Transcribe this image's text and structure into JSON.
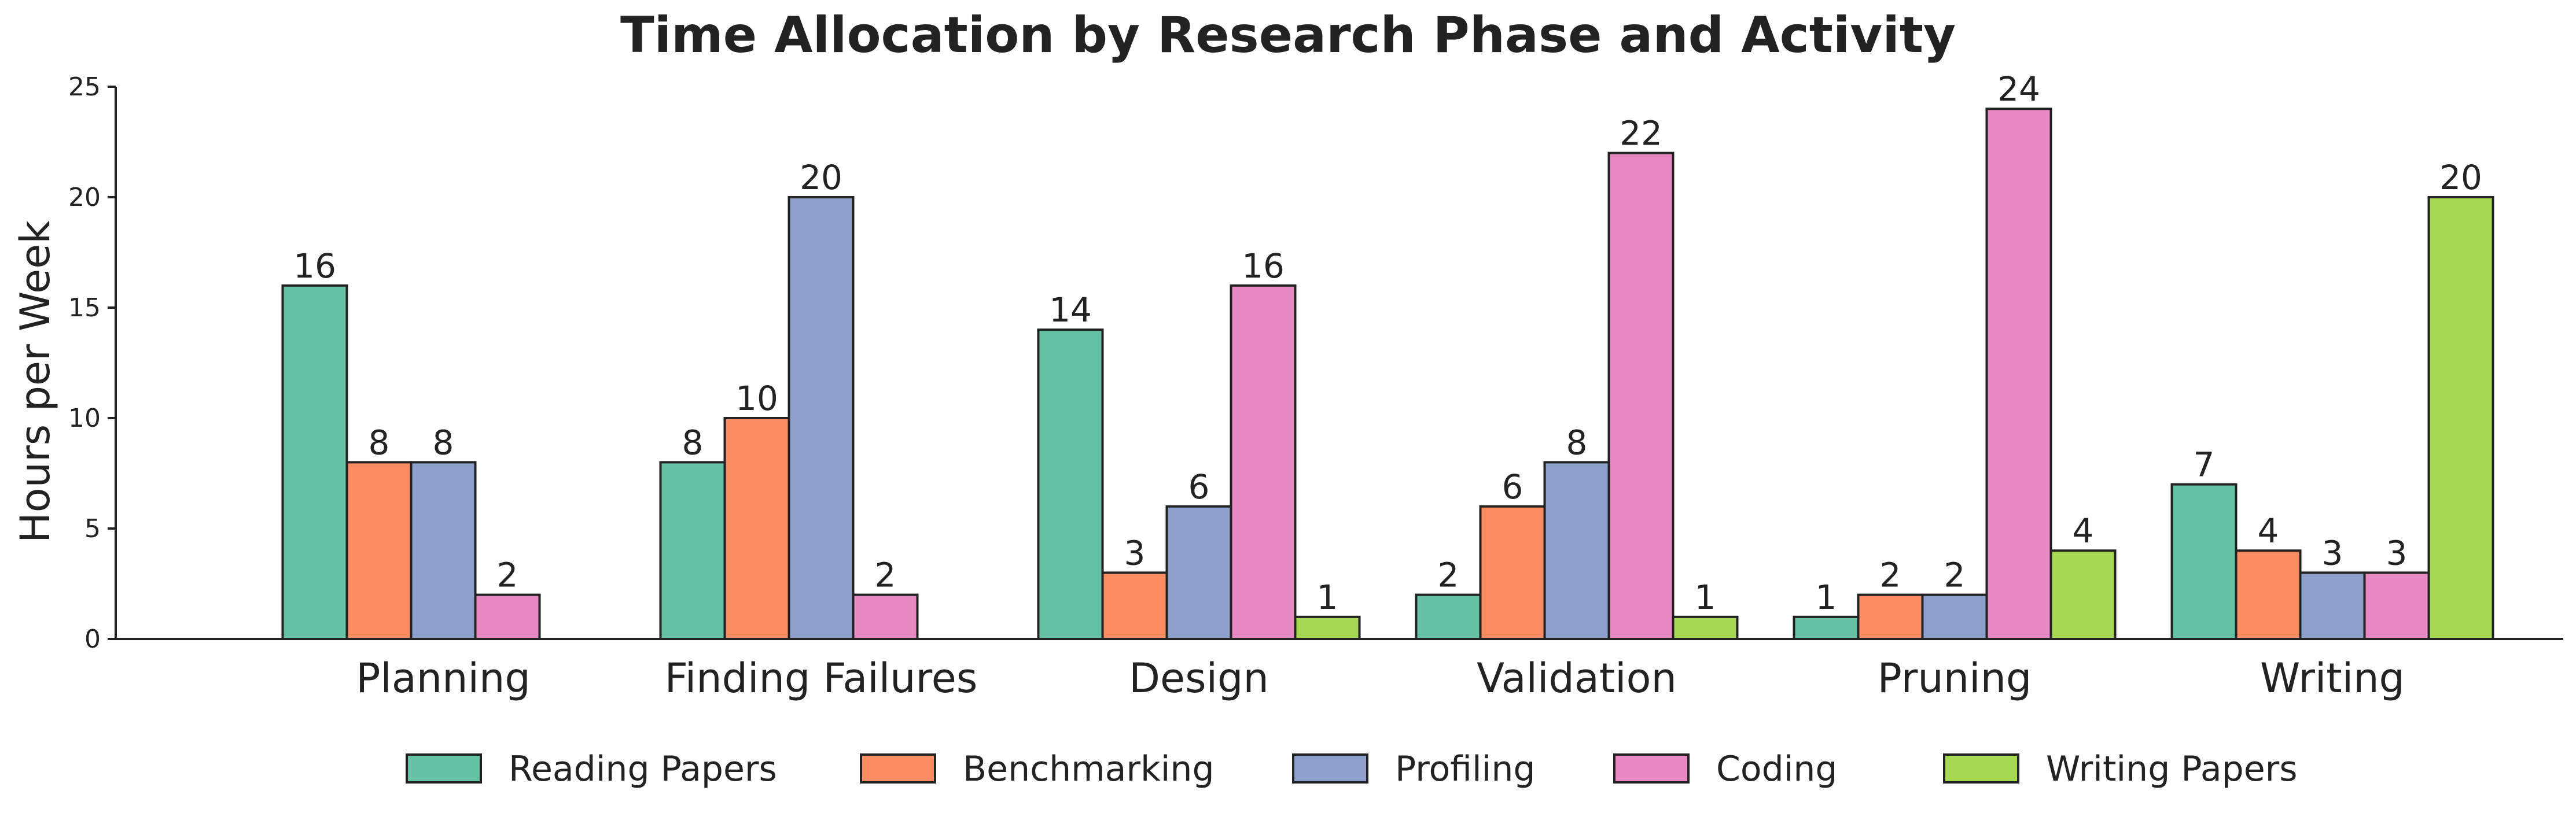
{
  "chart_data": {
    "type": "bar",
    "title": "Time Allocation by Research Phase and Activity",
    "xlabel": "",
    "ylabel": "Hours per Week",
    "ylim": [
      0,
      25
    ],
    "yticks": [
      0,
      5,
      10,
      15,
      20,
      25
    ],
    "categories": [
      "Planning",
      "Finding Failures",
      "Design",
      "Validation",
      "Pruning",
      "Writing"
    ],
    "series": [
      {
        "name": "Reading Papers",
        "color": "#66c2a5",
        "values": [
          16,
          8,
          14,
          2,
          1,
          7
        ]
      },
      {
        "name": "Benchmarking",
        "color": "#fc8d62",
        "values": [
          8,
          10,
          3,
          6,
          2,
          4
        ]
      },
      {
        "name": "Profiling",
        "color": "#8da0cb",
        "values": [
          8,
          20,
          6,
          8,
          2,
          3
        ]
      },
      {
        "name": "Coding",
        "color": "#e78ac3",
        "values": [
          2,
          2,
          16,
          22,
          24,
          3
        ]
      },
      {
        "name": "Writing Papers",
        "color": "#a6d854",
        "values": [
          0,
          0,
          1,
          1,
          4,
          20
        ]
      }
    ],
    "legend_position": "bottom-center",
    "grid": false
  }
}
